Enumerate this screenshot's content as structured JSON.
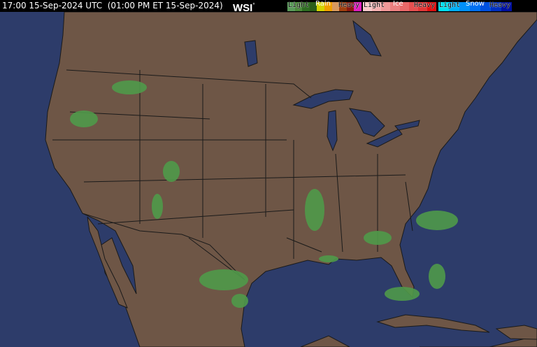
{
  "header": {
    "timestamp": "17:00 15-Sep-2024 UTC  (01:00 PM ET 15-Sep-2024)",
    "logo": "WSI"
  },
  "legend": {
    "rain": {
      "title": "Rain",
      "light": "Light",
      "heavy": "Heavy",
      "colors": [
        "#5a9a5a",
        "#4a8a3a",
        "#2f6e22",
        "#2b5e1a",
        "#d4d400",
        "#f0a000",
        "#d89a60",
        "#a04010",
        "#8a1a10",
        "#e020c0"
      ]
    },
    "ice": {
      "title": "Ice",
      "light": "Light",
      "heavy": "Heavy",
      "colors": [
        "#f8c8c8",
        "#f4b0b0",
        "#f09898",
        "#ec8080",
        "#e86868",
        "#e45050",
        "#e03838",
        "#e01010"
      ]
    },
    "snow": {
      "title": "Snow",
      "light": "Light",
      "heavy": "Heavy",
      "colors": [
        "#00e0f0",
        "#00b0f8",
        "#0090f8",
        "#0070f0",
        "#0050e0",
        "#0030c0",
        "#0010a0"
      ]
    }
  },
  "map": {
    "land_color": "#6e5646",
    "water_color": "#2d3c6a",
    "border_color": "#1a1a1a",
    "precip_color": "#4f9a4a"
  }
}
